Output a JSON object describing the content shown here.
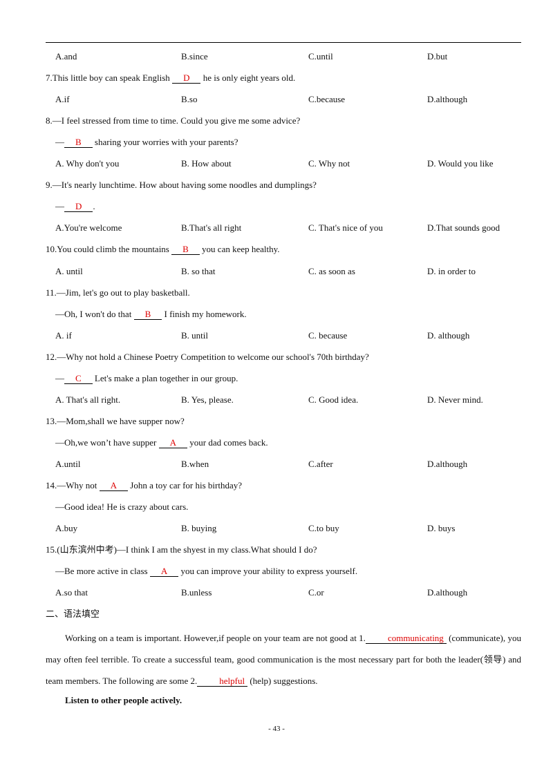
{
  "questions": [
    {
      "lines": [],
      "options": [
        "A.and",
        "B.since",
        "C.until",
        "D.but"
      ]
    },
    {
      "lines": [
        {
          "before": "7.This little boy can speak English ",
          "answer": "D",
          "after": " he is only eight years old."
        }
      ],
      "options": [
        "A.if",
        "B.so",
        "C.because",
        "D.although"
      ]
    },
    {
      "lines": [
        {
          "text": "8.—I feel stressed from time to time. Could you give me some advice?"
        },
        {
          "before": "—",
          "answer": "B",
          "after": " sharing your worries with your parents?"
        }
      ],
      "options": [
        "A. Why don't you",
        "B. How about",
        "C. Why not",
        "D. Would you like"
      ]
    },
    {
      "lines": [
        {
          "text": "9.—It's nearly lunchtime. How about having some noodles and dumplings?"
        },
        {
          "before": "—",
          "answer": "D",
          "after": "."
        }
      ],
      "options": [
        "A.You're welcome",
        "B.That's all right",
        "C. That's nice of you",
        "D.That sounds good"
      ]
    },
    {
      "lines": [
        {
          "before": "10.You could climb the mountains ",
          "answer": "B",
          "after": " you can keep healthy."
        }
      ],
      "options": [
        "A. until",
        "B. so that",
        "C. as soon as",
        "D. in order to"
      ]
    },
    {
      "lines": [
        {
          "text": "11.—Jim, let's go out to play basketball."
        },
        {
          "before": "—Oh, I won't do that ",
          "answer": "B",
          "after": " I finish my homework."
        }
      ],
      "options": [
        "A. if",
        "B. until",
        "C. because",
        "D. although"
      ]
    },
    {
      "lines": [
        {
          "text": "12.—Why not hold a Chinese Poetry Competition to welcome our school's 70th birthday?"
        },
        {
          "before": "—",
          "answer": "C",
          "after": " Let's make a plan together in our group."
        }
      ],
      "options": [
        "A. That's all right.",
        "B. Yes, please.",
        "C. Good idea.",
        "D. Never mind."
      ]
    },
    {
      "lines": [
        {
          "text": "13.—Mom,shall we have supper now?"
        },
        {
          "before": "—Oh,we won’t have supper ",
          "answer": "A",
          "after": " your dad comes back."
        }
      ],
      "options": [
        "A.until",
        "B.when",
        "C.after",
        "D.although"
      ]
    },
    {
      "lines": [
        {
          "before": "14.—Why not ",
          "answer": "A",
          "after": " John a toy car for his birthday?"
        },
        {
          "text": "—Good idea!  He is crazy about cars."
        }
      ],
      "options": [
        "A.buy",
        "B. buying",
        "C.to buy",
        "D. buys"
      ]
    },
    {
      "lines": [
        {
          "text": "15.(山东滨州中考)—I think I am the shyest in my class.What should I do?"
        },
        {
          "before": "—Be more active in class ",
          "answer": "A",
          "after": " you can improve your ability to express yourself."
        }
      ],
      "options": [
        "A.so that",
        "B.unless",
        "C.or",
        "D.although"
      ]
    }
  ],
  "section": {
    "title": "二、语法填空",
    "paragraph": [
      {
        "text": "Working on a team is important. However,if people on your team are not good at 1."
      },
      {
        "answer": "communicating"
      },
      {
        "text": " (communicate), you may often feel terrible. To create a successful team, good communication is the most necessary part for both the leader(领导) and team members. The following are some 2."
      },
      {
        "answer": "helpful"
      },
      {
        "text": " (help) suggestions."
      }
    ],
    "heading": "Listen to other people actively."
  },
  "footer": {
    "page": "- 43 -"
  }
}
